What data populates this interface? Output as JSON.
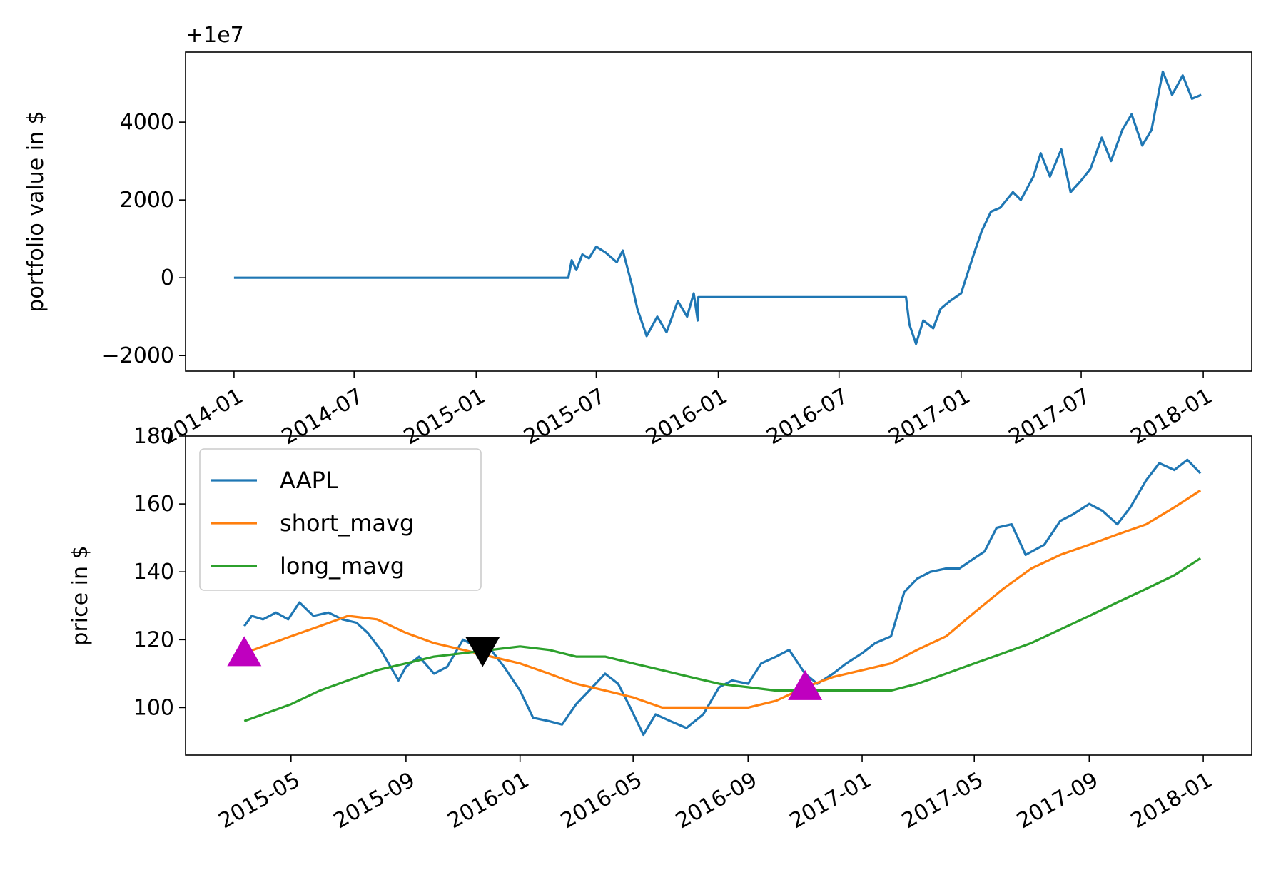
{
  "chart_data": [
    {
      "type": "line",
      "offset_text": "+1e7",
      "ylabel": "portfolio value in $",
      "x_range": [
        "2014-01-01",
        "2018-01-01"
      ],
      "ylim": [
        -2400,
        5800
      ],
      "y_ticks": [
        -2000,
        0,
        2000,
        4000
      ],
      "y_tick_labels": [
        "−2000",
        "0",
        "2000",
        "4000"
      ],
      "x_ticks": [
        "2014-01-01",
        "2014-07-01",
        "2015-01-01",
        "2015-07-01",
        "2016-01-01",
        "2016-07-01",
        "2017-01-01",
        "2017-07-01",
        "2018-01-01"
      ],
      "x_tick_labels": [
        "2014-01",
        "2014-07",
        "2015-01",
        "2015-07",
        "2016-01",
        "2016-07",
        "2017-01",
        "2017-07",
        "2018-01"
      ],
      "series": [
        {
          "color": "#1f77b4",
          "x": [
            "2014-01-01",
            "2015-05-20",
            "2015-05-25",
            "2015-06-01",
            "2015-06-10",
            "2015-06-20",
            "2015-07-01",
            "2015-07-15",
            "2015-08-01",
            "2015-08-10",
            "2015-08-24",
            "2015-09-01",
            "2015-09-15",
            "2015-10-01",
            "2015-10-15",
            "2015-11-01",
            "2015-11-15",
            "2015-11-25",
            "2015-12-01",
            "2015-12-02",
            "2016-10-10",
            "2016-10-15",
            "2016-10-25",
            "2016-11-05",
            "2016-11-20",
            "2016-12-01",
            "2016-12-15",
            "2017-01-01",
            "2017-01-20",
            "2017-02-01",
            "2017-02-15",
            "2017-03-01",
            "2017-03-20",
            "2017-04-01",
            "2017-04-20",
            "2017-05-01",
            "2017-05-15",
            "2017-06-01",
            "2017-06-15",
            "2017-07-01",
            "2017-07-15",
            "2017-08-01",
            "2017-08-15",
            "2017-09-01",
            "2017-09-15",
            "2017-10-01",
            "2017-10-15",
            "2017-11-01",
            "2017-11-15",
            "2017-12-01",
            "2017-12-15",
            "2017-12-29"
          ],
          "y": [
            0,
            0,
            450,
            200,
            600,
            500,
            800,
            650,
            400,
            700,
            -200,
            -800,
            -1500,
            -1000,
            -1400,
            -600,
            -1000,
            -400,
            -1100,
            -500,
            -500,
            -1200,
            -1700,
            -1100,
            -1300,
            -800,
            -600,
            -400,
            600,
            1200,
            1700,
            1800,
            2200,
            2000,
            2600,
            3200,
            2600,
            3300,
            2200,
            2500,
            2800,
            3600,
            3000,
            3800,
            4200,
            3400,
            3800,
            5300,
            4700,
            5200,
            4600,
            4700
          ]
        }
      ]
    },
    {
      "type": "line",
      "ylabel": "price in $",
      "x_range": [
        "2015-03-01",
        "2018-01-01"
      ],
      "ylim": [
        86,
        180
      ],
      "y_ticks": [
        100,
        120,
        140,
        160,
        180
      ],
      "y_tick_labels": [
        "100",
        "120",
        "140",
        "160",
        "180"
      ],
      "x_ticks": [
        "2015-05-01",
        "2015-09-01",
        "2016-01-01",
        "2016-05-01",
        "2016-09-01",
        "2017-01-01",
        "2017-05-01",
        "2017-09-01",
        "2018-01-01"
      ],
      "x_tick_labels": [
        "2015-05",
        "2015-09",
        "2016-01",
        "2016-05",
        "2016-09",
        "2017-01",
        "2017-05",
        "2017-09",
        "2018-01"
      ],
      "legend": {
        "position": "upper-left",
        "entries": [
          "AAPL",
          "short_mavg",
          "long_mavg"
        ]
      },
      "series": [
        {
          "name": "AAPL",
          "color": "#1f77b4",
          "x": [
            "2015-03-12",
            "2015-03-20",
            "2015-04-01",
            "2015-04-15",
            "2015-04-28",
            "2015-05-10",
            "2015-05-25",
            "2015-06-10",
            "2015-06-25",
            "2015-07-10",
            "2015-07-22",
            "2015-08-05",
            "2015-08-24",
            "2015-09-01",
            "2015-09-15",
            "2015-10-01",
            "2015-10-15",
            "2015-11-01",
            "2015-11-15",
            "2015-12-01",
            "2015-12-15",
            "2016-01-01",
            "2016-01-15",
            "2016-02-01",
            "2016-02-15",
            "2016-03-01",
            "2016-03-15",
            "2016-04-01",
            "2016-04-15",
            "2016-04-28",
            "2016-05-12",
            "2016-05-25",
            "2016-06-10",
            "2016-06-27",
            "2016-07-15",
            "2016-08-01",
            "2016-08-15",
            "2016-09-01",
            "2016-09-15",
            "2016-10-01",
            "2016-10-15",
            "2016-11-01",
            "2016-11-14",
            "2016-12-01",
            "2016-12-15",
            "2017-01-01",
            "2017-01-15",
            "2017-02-01",
            "2017-02-15",
            "2017-03-01",
            "2017-03-15",
            "2017-04-01",
            "2017-04-15",
            "2017-05-01",
            "2017-05-12",
            "2017-05-25",
            "2017-06-10",
            "2017-06-25",
            "2017-07-15",
            "2017-08-01",
            "2017-08-15",
            "2017-09-01",
            "2017-09-15",
            "2017-10-01",
            "2017-10-15",
            "2017-11-01",
            "2017-11-15",
            "2017-12-01",
            "2017-12-15",
            "2017-12-29"
          ],
          "y": [
            124,
            127,
            126,
            128,
            126,
            131,
            127,
            128,
            126,
            125,
            122,
            117,
            108,
            112,
            115,
            110,
            112,
            120,
            118,
            117,
            112,
            105,
            97,
            96,
            95,
            101,
            105,
            110,
            107,
            100,
            92,
            98,
            96,
            94,
            98,
            106,
            108,
            107,
            113,
            115,
            117,
            110,
            107,
            110,
            113,
            116,
            119,
            121,
            134,
            138,
            140,
            141,
            141,
            144,
            146,
            153,
            154,
            145,
            148,
            155,
            157,
            160,
            158,
            154,
            159,
            167,
            172,
            170,
            173,
            169
          ]
        },
        {
          "name": "short_mavg",
          "color": "#ff7f0e",
          "x": [
            "2015-03-12",
            "2015-04-01",
            "2015-05-01",
            "2015-06-01",
            "2015-07-01",
            "2015-08-01",
            "2015-09-01",
            "2015-10-01",
            "2015-11-01",
            "2015-12-01",
            "2016-01-01",
            "2016-02-01",
            "2016-03-01",
            "2016-04-01",
            "2016-05-01",
            "2016-06-01",
            "2016-07-01",
            "2016-08-01",
            "2016-09-01",
            "2016-10-01",
            "2016-11-01",
            "2016-12-01",
            "2017-01-01",
            "2017-02-01",
            "2017-03-01",
            "2017-04-01",
            "2017-05-01",
            "2017-06-01",
            "2017-07-01",
            "2017-08-01",
            "2017-09-01",
            "2017-10-01",
            "2017-11-01",
            "2017-12-01",
            "2017-12-29"
          ],
          "y": [
            116,
            118,
            121,
            124,
            127,
            126,
            122,
            119,
            117,
            115,
            113,
            110,
            107,
            105,
            103,
            100,
            100,
            100,
            100,
            102,
            106,
            109,
            111,
            113,
            117,
            121,
            128,
            135,
            141,
            145,
            148,
            151,
            154,
            159,
            164
          ]
        },
        {
          "name": "long_mavg",
          "color": "#2ca02c",
          "x": [
            "2015-03-12",
            "2015-05-01",
            "2015-06-01",
            "2015-07-01",
            "2015-08-01",
            "2015-09-01",
            "2015-10-01",
            "2015-11-01",
            "2015-12-01",
            "2016-01-01",
            "2016-02-01",
            "2016-03-01",
            "2016-04-01",
            "2016-05-01",
            "2016-06-01",
            "2016-07-01",
            "2016-08-01",
            "2016-09-01",
            "2016-10-01",
            "2016-11-01",
            "2016-12-01",
            "2017-01-01",
            "2017-02-01",
            "2017-03-01",
            "2017-04-01",
            "2017-05-01",
            "2017-06-01",
            "2017-07-01",
            "2017-08-01",
            "2017-09-01",
            "2017-10-01",
            "2017-11-01",
            "2017-12-01",
            "2017-12-29"
          ],
          "y": [
            96,
            101,
            105,
            108,
            111,
            113,
            115,
            116,
            117,
            118,
            117,
            115,
            115,
            113,
            111,
            109,
            107,
            106,
            105,
            105,
            105,
            105,
            105,
            107,
            110,
            113,
            116,
            119,
            123,
            127,
            131,
            135,
            139,
            144
          ]
        }
      ],
      "markers": [
        {
          "kind": "buy",
          "shape": "triangle-up",
          "color": "#bf00bf",
          "x": "2015-03-12",
          "y": 116
        },
        {
          "kind": "sell",
          "shape": "triangle-down",
          "color": "#000000",
          "x": "2015-11-22",
          "y": 117
        },
        {
          "kind": "buy",
          "shape": "triangle-up",
          "color": "#bf00bf",
          "x": "2016-11-01",
          "y": 106
        }
      ]
    }
  ]
}
